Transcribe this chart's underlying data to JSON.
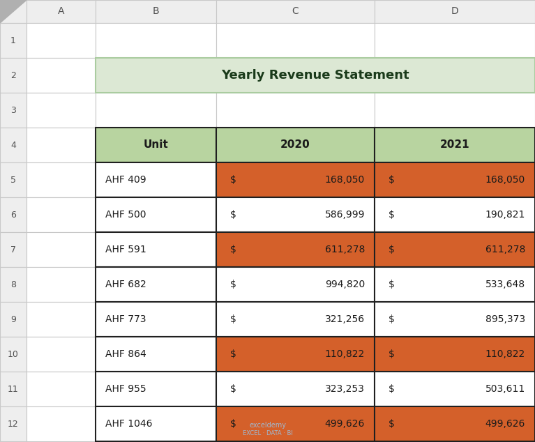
{
  "title": "Yearly Revenue Statement",
  "title_bg": "#dce8d4",
  "title_border": "#aacca0",
  "header_bg": "#b8d4a0",
  "orange_bg": "#d4602a",
  "white_bg": "#ffffff",
  "border_color": "#202020",
  "rows": [
    {
      "unit": "AHF 409",
      "v2020": "168,050",
      "v2021": "168,050",
      "highlight": true
    },
    {
      "unit": "AHF 500",
      "v2020": "586,999",
      "v2021": "190,821",
      "highlight": false
    },
    {
      "unit": "AHF 591",
      "v2020": "611,278",
      "v2021": "611,278",
      "highlight": true
    },
    {
      "unit": "AHF 682",
      "v2020": "994,820",
      "v2021": "533,648",
      "highlight": false
    },
    {
      "unit": "AHF 773",
      "v2020": "321,256",
      "v2021": "895,373",
      "highlight": false
    },
    {
      "unit": "AHF 864",
      "v2020": "110,822",
      "v2021": "110,822",
      "highlight": true
    },
    {
      "unit": "AHF 955",
      "v2020": "323,253",
      "v2021": "503,611",
      "highlight": false
    },
    {
      "unit": "AHF 1046",
      "v2020": "499,626",
      "v2021": "499,626",
      "highlight": true
    }
  ],
  "col_header_labels": [
    "",
    "A",
    "B",
    "C",
    "D"
  ],
  "row_header_labels": [
    "",
    "1",
    "2",
    "3",
    "4",
    "5",
    "6",
    "7",
    "8",
    "9",
    "10",
    "11",
    "12"
  ],
  "fig_bg": "#ffffff",
  "grid_color": "#c8c8c8",
  "excel_header_bg": "#eeeeee",
  "excel_header_text": "#505050",
  "cell_text_color": "#1a1a1a",
  "title_text_color": "#1a3a1a",
  "watermark_text": "exceldemy",
  "watermark_sub": "EXCEL · DATA · BI"
}
